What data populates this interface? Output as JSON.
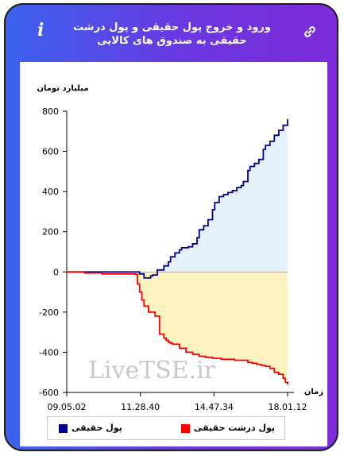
{
  "header": {
    "title": "ورود و خروج پول حقیقی و پول درشت حقیقی به صندوق های کالایی",
    "info_icon": "i",
    "link_icon": "link-icon"
  },
  "watermark": "LiveTSE.ir",
  "colors": {
    "real_money": "#00008b",
    "large_real_money": "#ff0000",
    "positive_fill": "#e6f2fb",
    "negative_fill": "#fdf3c0"
  },
  "chart_data": {
    "type": "line",
    "ylabel": "میلیارد تومان",
    "xlabel": "زمان",
    "ylim": [
      -600,
      800
    ],
    "yticks": [
      800,
      600,
      400,
      200,
      0,
      -200,
      -400,
      -600
    ],
    "xtick_labels": [
      "09.05.02",
      "11.28.40",
      "14.47.34",
      "18.01.12"
    ],
    "legend": {
      "placement": "bottom"
    },
    "series": [
      {
        "name": "پول حقیقی",
        "points": [
          [
            0,
            0
          ],
          [
            8,
            0
          ],
          [
            16,
            0
          ],
          [
            24,
            0
          ],
          [
            31,
            0
          ],
          [
            33,
            -10
          ],
          [
            35,
            -30
          ],
          [
            37,
            -30
          ],
          [
            38,
            -20
          ],
          [
            39,
            -15
          ],
          [
            41,
            10
          ],
          [
            44,
            30
          ],
          [
            46,
            50
          ],
          [
            47,
            75
          ],
          [
            49,
            95
          ],
          [
            51,
            110
          ],
          [
            52,
            120
          ],
          [
            55,
            125
          ],
          [
            57,
            140
          ],
          [
            59,
            170
          ],
          [
            60,
            210
          ],
          [
            62,
            230
          ],
          [
            64,
            260
          ],
          [
            66,
            310
          ],
          [
            67,
            345
          ],
          [
            69,
            375
          ],
          [
            71,
            385
          ],
          [
            73,
            395
          ],
          [
            75,
            405
          ],
          [
            77,
            420
          ],
          [
            79,
            430
          ],
          [
            80,
            450
          ],
          [
            82,
            505
          ],
          [
            83,
            525
          ],
          [
            85,
            540
          ],
          [
            87,
            560
          ],
          [
            89,
            610
          ],
          [
            90,
            630
          ],
          [
            92,
            650
          ],
          [
            94,
            680
          ],
          [
            96,
            705
          ],
          [
            98,
            730
          ],
          [
            100,
            760
          ]
        ]
      },
      {
        "name": "پول درشت حقیقی",
        "points": [
          [
            0,
            0
          ],
          [
            8,
            -5
          ],
          [
            16,
            -10
          ],
          [
            24,
            -10
          ],
          [
            31,
            -12
          ],
          [
            32,
            -60
          ],
          [
            33,
            -100
          ],
          [
            34,
            -140
          ],
          [
            35,
            -170
          ],
          [
            37,
            -200
          ],
          [
            40,
            -220
          ],
          [
            42,
            -310
          ],
          [
            44,
            -330
          ],
          [
            45,
            -340
          ],
          [
            46,
            -350
          ],
          [
            47,
            -355
          ],
          [
            48,
            -360
          ],
          [
            49,
            -360
          ],
          [
            51,
            -380
          ],
          [
            54,
            -400
          ],
          [
            57,
            -410
          ],
          [
            60,
            -420
          ],
          [
            63,
            -425
          ],
          [
            66,
            -430
          ],
          [
            70,
            -435
          ],
          [
            73,
            -435
          ],
          [
            76,
            -440
          ],
          [
            79,
            -440
          ],
          [
            82,
            -450
          ],
          [
            84,
            -455
          ],
          [
            86,
            -460
          ],
          [
            88,
            -465
          ],
          [
            90,
            -470
          ],
          [
            92,
            -480
          ],
          [
            94,
            -500
          ],
          [
            96,
            -510
          ],
          [
            98,
            -530
          ],
          [
            99,
            -550
          ],
          [
            100,
            -560
          ]
        ]
      }
    ]
  }
}
